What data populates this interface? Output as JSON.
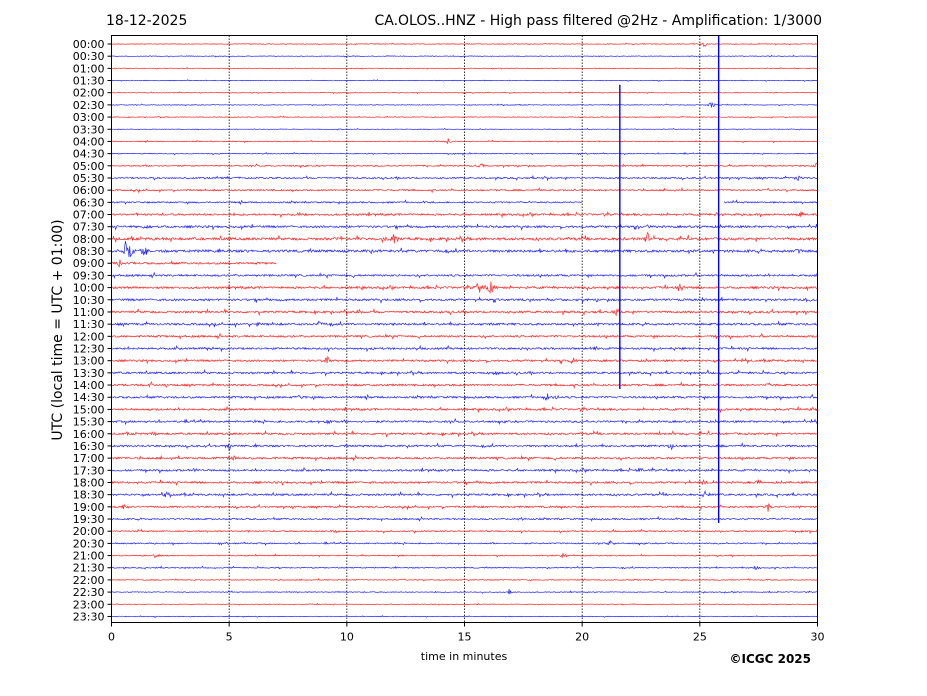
{
  "chart_data": {
    "type": "line",
    "title_left": "18-12-2025",
    "title": "CA.OLOS..HNZ - High pass filtered @2Hz - Amplification: 1/3000",
    "xlabel": "time in minutes",
    "ylabel": "UTC (local time = UTC + 01:00)",
    "copyright": "©ICGC 2025",
    "xlim": [
      0,
      30
    ],
    "xticks": [
      "0",
      "5",
      "10",
      "15",
      "20",
      "25",
      "30"
    ],
    "row_labels": [
      "00:00",
      "00:30",
      "01:00",
      "01:30",
      "02:00",
      "02:30",
      "03:00",
      "03:30",
      "04:00",
      "04:30",
      "05:00",
      "05:30",
      "06:00",
      "06:30",
      "07:00",
      "07:30",
      "08:00",
      "08:30",
      "09:00",
      "09:30",
      "10:00",
      "10:30",
      "11:00",
      "11:30",
      "12:00",
      "12:30",
      "13:00",
      "13:30",
      "14:00",
      "14:30",
      "15:00",
      "15:30",
      "16:00",
      "16:30",
      "17:00",
      "17:30",
      "18:00",
      "18:30",
      "19:00",
      "19:30",
      "20:00",
      "20:30",
      "21:00",
      "21:30",
      "22:00",
      "22:30",
      "23:00",
      "23:30"
    ],
    "row_colors": [
      "#ff0000",
      "#0000ff"
    ],
    "noise_levels": [
      0.3,
      0.3,
      0.3,
      0.3,
      0.3,
      0.3,
      0.3,
      0.3,
      0.4,
      0.4,
      0.6,
      0.7,
      0.7,
      0.7,
      0.9,
      1.0,
      1.2,
      1.2,
      0.9,
      0.9,
      1.0,
      1.0,
      1.0,
      1.0,
      0.9,
      0.9,
      0.9,
      0.9,
      0.9,
      0.9,
      0.9,
      0.9,
      0.9,
      0.9,
      0.9,
      0.9,
      0.9,
      0.9,
      0.8,
      0.7,
      0.6,
      0.6,
      0.5,
      0.5,
      0.4,
      0.4,
      0.3,
      0.3
    ],
    "gaps": [
      {
        "row": 13,
        "from": 20,
        "to": 26
      },
      {
        "row": 18,
        "from": 7,
        "to": 30
      }
    ],
    "events": [
      [
        0,
        25.2,
        3
      ],
      [
        5,
        25.5,
        5
      ],
      [
        8,
        14.3,
        3
      ],
      [
        10,
        15.7,
        3
      ],
      [
        10,
        30,
        5
      ],
      [
        11,
        18.5,
        3
      ],
      [
        11,
        29.2,
        4
      ],
      [
        14,
        8,
        3
      ],
      [
        14,
        25.7,
        4
      ],
      [
        14,
        29.3,
        3
      ],
      [
        15,
        1.5,
        4
      ],
      [
        15,
        22.7,
        4
      ],
      [
        16,
        9.5,
        4
      ],
      [
        16,
        11.5,
        4
      ],
      [
        16,
        12,
        4
      ],
      [
        16,
        22.8,
        8
      ],
      [
        17,
        0.6,
        10
      ],
      [
        17,
        0.8,
        8
      ],
      [
        17,
        1.4,
        7
      ],
      [
        17,
        29.2,
        4
      ],
      [
        18,
        0.3,
        6
      ],
      [
        18,
        9.5,
        3
      ],
      [
        20,
        15.6,
        8
      ],
      [
        20,
        16.1,
        10
      ],
      [
        20,
        24.2,
        5
      ],
      [
        21,
        29.6,
        3
      ],
      [
        22,
        10.5,
        4
      ],
      [
        22,
        21.5,
        4
      ],
      [
        23,
        6.2,
        3
      ],
      [
        23,
        8.8,
        3
      ],
      [
        25,
        4.2,
        3
      ],
      [
        25,
        20.5,
        3
      ],
      [
        26,
        9.2,
        6
      ],
      [
        26,
        19.6,
        4
      ],
      [
        27,
        16.3,
        4
      ],
      [
        28,
        1.7,
        3
      ],
      [
        28,
        27.9,
        3
      ],
      [
        29,
        8,
        4
      ],
      [
        29,
        18.5,
        4
      ],
      [
        29,
        18.9,
        3
      ],
      [
        30,
        29.9,
        3
      ],
      [
        31,
        9.2,
        4
      ],
      [
        32,
        1.8,
        3
      ],
      [
        33,
        5,
        4
      ],
      [
        33,
        23.8,
        4
      ],
      [
        34,
        5.2,
        3
      ],
      [
        35,
        3.5,
        3
      ],
      [
        35,
        22.5,
        3
      ],
      [
        36,
        25.2,
        3
      ],
      [
        36,
        27.5,
        3
      ],
      [
        37,
        2.3,
        3
      ],
      [
        37,
        25.2,
        4
      ],
      [
        38,
        0.5,
        3
      ],
      [
        38,
        27.9,
        5
      ],
      [
        39,
        17.4,
        3
      ],
      [
        40,
        9.5,
        3
      ],
      [
        41,
        21.2,
        3
      ],
      [
        42,
        1.9,
        3
      ],
      [
        42,
        19.2,
        4
      ],
      [
        43,
        27.4,
        3
      ],
      [
        45,
        16.9,
        3
      ]
    ],
    "spikes": [
      {
        "minute": 21.6,
        "from_row": 4,
        "to_row": 28
      },
      {
        "minute": 25.8,
        "from_row": 0,
        "to_row": 39
      }
    ]
  }
}
